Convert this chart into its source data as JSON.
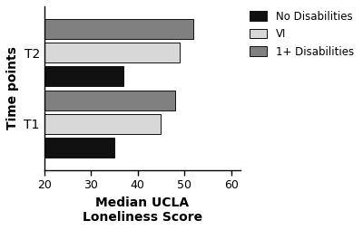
{
  "groups": [
    "T1",
    "T2"
  ],
  "categories": [
    "1+ Disabilities",
    "VI",
    "No Disabilities"
  ],
  "values": {
    "T1": [
      48,
      45,
      35
    ],
    "T2": [
      52,
      49,
      37
    ]
  },
  "colors": [
    "#808080",
    "#d8d8d8",
    "#111111"
  ],
  "xlim": [
    20,
    62
  ],
  "xticks": [
    20,
    30,
    40,
    50,
    60
  ],
  "xlabel_line1": "Median UCLA",
  "xlabel_line2": "Loneliness Score",
  "ylabel": "Time points",
  "bar_height": 0.28,
  "edgecolor": "#111111",
  "background_color": "#ffffff",
  "legend_labels": [
    "No Disabilities",
    "VI",
    "1+ Disabilities"
  ],
  "legend_colors": [
    "#111111",
    "#d8d8d8",
    "#808080"
  ]
}
